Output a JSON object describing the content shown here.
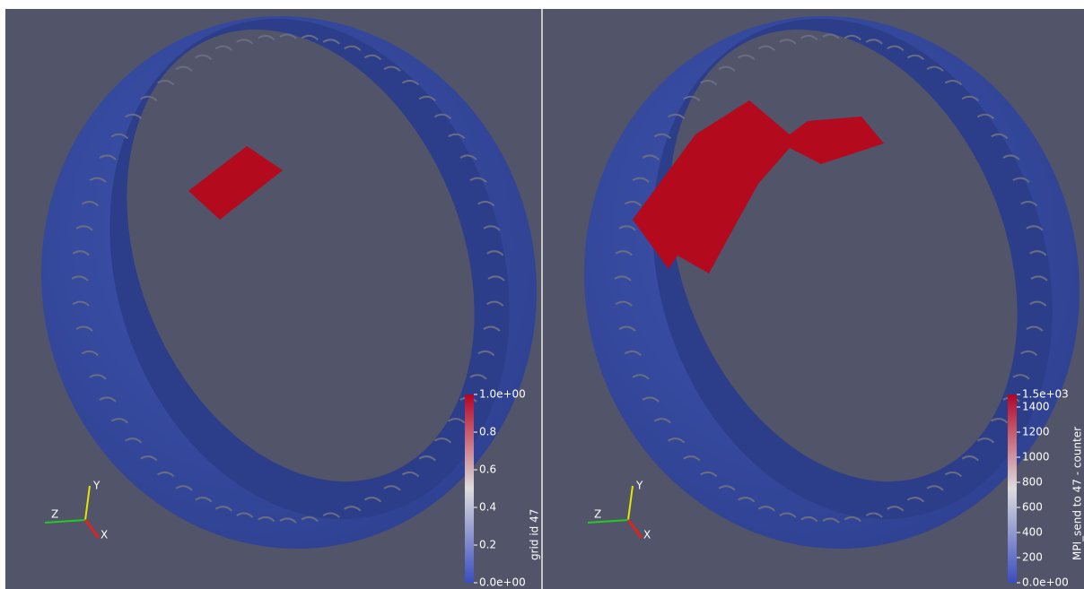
{
  "views": [
    {
      "colorbar": {
        "title": "grid id 47",
        "range": [
          0,
          1
        ],
        "ticks": [
          {
            "value": 1,
            "label": "1.0e+00"
          },
          0.8,
          0.6,
          0.4,
          0.2,
          {
            "value": 0,
            "label": "0.0e+00"
          }
        ]
      },
      "axes": {
        "x": "X",
        "y": "Y",
        "z": "Z"
      }
    },
    {
      "colorbar": {
        "title": "MPI_send to 47 - counter",
        "range": [
          0,
          1500
        ],
        "ticks": [
          {
            "value": 1500,
            "label": "1.5e+03"
          },
          1400,
          1200,
          1000,
          800,
          600,
          400,
          200,
          {
            "value": 0,
            "label": "0.0e+00"
          }
        ]
      },
      "axes": {
        "x": "X",
        "y": "Y",
        "z": "Z"
      }
    }
  ]
}
